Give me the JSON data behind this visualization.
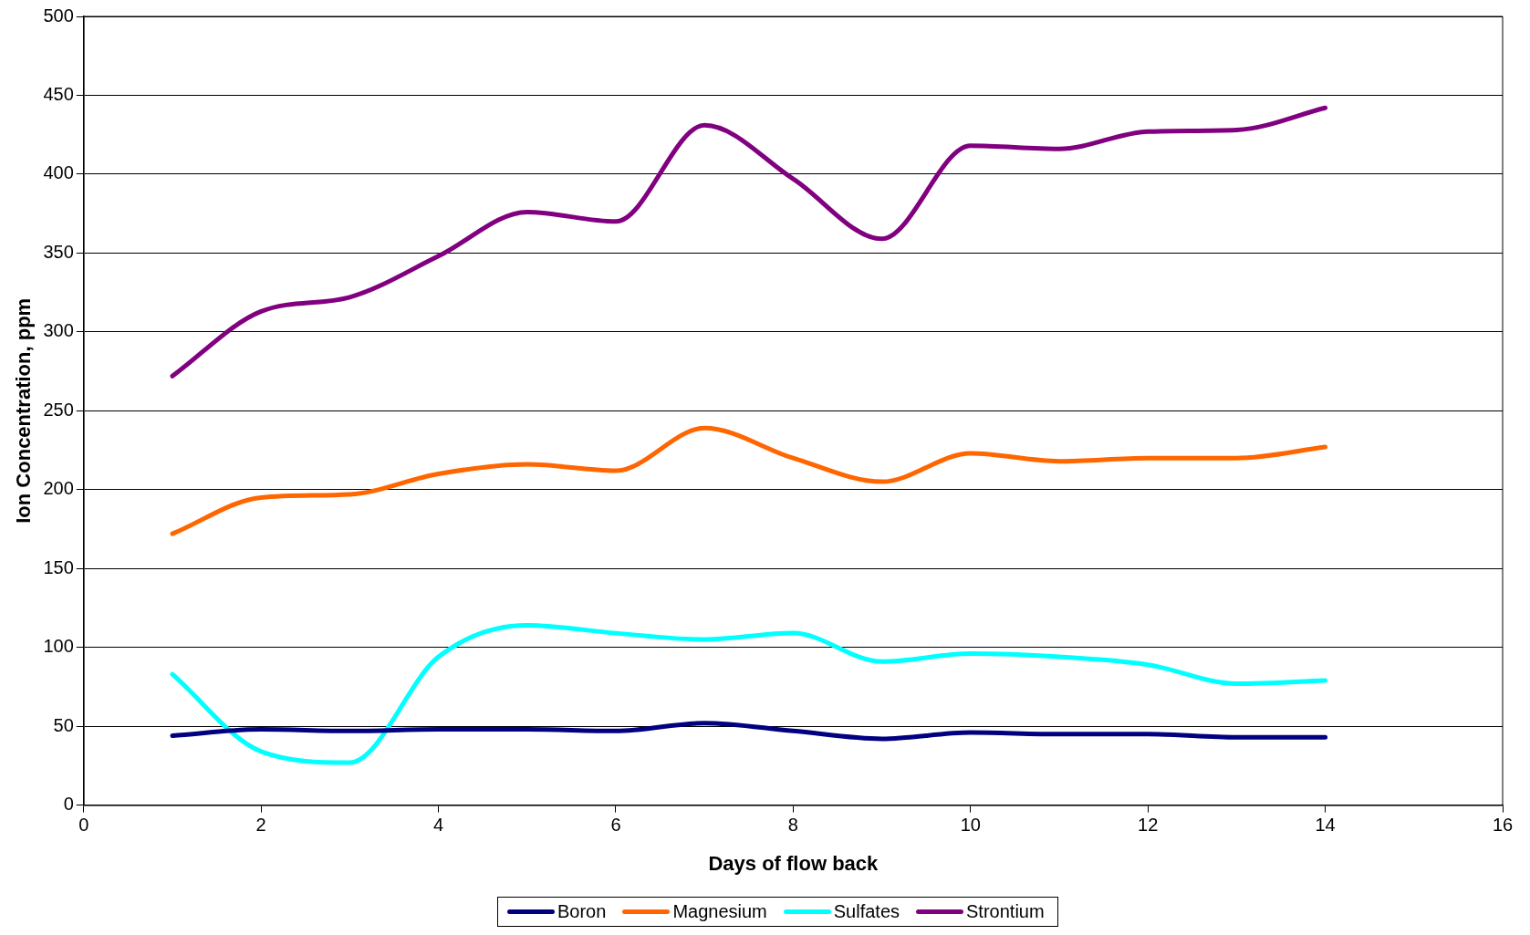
{
  "chart_data": {
    "type": "line",
    "xlabel": "Days of flow back",
    "ylabel": "Ion Concentration, ppm",
    "x": [
      1,
      2,
      3,
      4,
      5,
      6,
      7,
      8,
      9,
      10,
      11,
      12,
      13,
      14
    ],
    "xlim": [
      0,
      16
    ],
    "xticks": [
      0,
      2,
      4,
      6,
      8,
      10,
      12,
      14,
      16
    ],
    "ylim": [
      0,
      500
    ],
    "yticks": [
      0,
      50,
      100,
      150,
      200,
      250,
      300,
      350,
      400,
      450,
      500
    ],
    "grid": "y",
    "legend": "bottom",
    "marker": "none",
    "line_style": "solid",
    "series": [
      {
        "name": "Boron",
        "color": "#000080",
        "values": [
          44,
          48,
          47,
          48,
          48,
          47,
          52,
          47,
          42,
          46,
          45,
          45,
          43,
          43
        ]
      },
      {
        "name": "Magnesium",
        "color": "#ff6600",
        "values": [
          172,
          195,
          197,
          210,
          216,
          212,
          239,
          220,
          205,
          223,
          218,
          220,
          220,
          227
        ]
      },
      {
        "name": "Sulfates",
        "color": "#00ffff",
        "values": [
          83,
          34,
          27,
          94,
          114,
          109,
          105,
          109,
          91,
          96,
          94,
          89,
          77,
          79
        ]
      },
      {
        "name": "Strontium",
        "color": "#800080",
        "values": [
          272,
          313,
          322,
          348,
          376,
          370,
          431,
          397,
          359,
          418,
          416,
          427,
          428,
          442
        ]
      }
    ]
  }
}
